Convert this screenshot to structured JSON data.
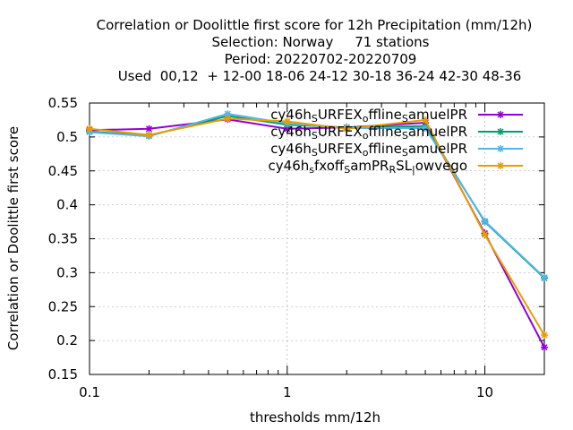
{
  "chart_data": {
    "type": "line",
    "title_lines": [
      "Correlation or Doolittle first score  for 12h Precipitation (mm/12h)",
      "Selection: Norway     71 stations",
      "Period: 20220702-20220709",
      "Used  00,12  + 12-00 18-06 24-12 30-18 36-24 42-30 48-36"
    ],
    "xlabel": "thresholds mm/12h",
    "ylabel": "Correlation or Doolittle first score",
    "xscale": "log",
    "xlim": [
      0.1,
      20
    ],
    "ylim": [
      0.15,
      0.55
    ],
    "xticks": [
      {
        "v": 0.1,
        "label": "0.1"
      },
      {
        "v": 1,
        "label": "1"
      },
      {
        "v": 10,
        "label": "10"
      }
    ],
    "yticks": [
      {
        "v": 0.15,
        "label": "0.15"
      },
      {
        "v": 0.2,
        "label": "0.2"
      },
      {
        "v": 0.25,
        "label": "0.25"
      },
      {
        "v": 0.3,
        "label": "0.3"
      },
      {
        "v": 0.35,
        "label": "0.35"
      },
      {
        "v": 0.4,
        "label": "0.4"
      },
      {
        "v": 0.45,
        "label": "0.45"
      },
      {
        "v": 0.5,
        "label": "0.5"
      },
      {
        "v": 0.55,
        "label": "0.55"
      }
    ],
    "grid": true,
    "legend_position": "top-right",
    "x": [
      0.1,
      0.2,
      0.5,
      1,
      2,
      5,
      10,
      20
    ],
    "series": [
      {
        "name_parts": [
          [
            "cy46h",
            "n"
          ],
          [
            "S",
            "sub"
          ],
          [
            "URFEX",
            "n"
          ],
          [
            "o",
            "sub"
          ],
          [
            "ffline",
            "n"
          ],
          [
            "S",
            "sub"
          ],
          [
            "amuelPR",
            "n"
          ]
        ],
        "color": "#9400d3",
        "values": [
          0.51,
          0.512,
          0.526,
          0.512,
          0.514,
          0.521,
          0.358,
          0.19
        ]
      },
      {
        "name_parts": [
          [
            "cy46h",
            "n"
          ],
          [
            "S",
            "sub"
          ],
          [
            "URFEX",
            "n"
          ],
          [
            "o",
            "sub"
          ],
          [
            "ffline",
            "n"
          ],
          [
            "S",
            "sub"
          ],
          [
            "amuelPR",
            "n"
          ]
        ],
        "color": "#009e73",
        "values": [
          0.508,
          0.502,
          0.531,
          0.518,
          0.514,
          0.516,
          0.375,
          0.292
        ]
      },
      {
        "name_parts": [
          [
            "cy46h",
            "n"
          ],
          [
            "S",
            "sub"
          ],
          [
            "URFEX",
            "n"
          ],
          [
            "o",
            "sub"
          ],
          [
            "ffline",
            "n"
          ],
          [
            "S",
            "sub"
          ],
          [
            "amuelPR",
            "n"
          ]
        ],
        "color": "#56b4e9",
        "values": [
          0.507,
          0.501,
          0.534,
          0.52,
          0.513,
          0.513,
          0.376,
          0.293
        ]
      },
      {
        "name_parts": [
          [
            "cy46h",
            "n"
          ],
          [
            "s",
            "sub"
          ],
          [
            "fxoff",
            "n"
          ],
          [
            "S",
            "sub"
          ],
          [
            "amPR",
            "n"
          ],
          [
            "R",
            "sub"
          ],
          [
            "SL",
            "n"
          ],
          [
            "|",
            "sub"
          ],
          [
            "owvego",
            "n"
          ]
        ],
        "color": "#e69f00",
        "values": [
          0.512,
          0.503,
          0.527,
          0.523,
          0.512,
          0.525,
          0.356,
          0.208
        ]
      }
    ]
  }
}
